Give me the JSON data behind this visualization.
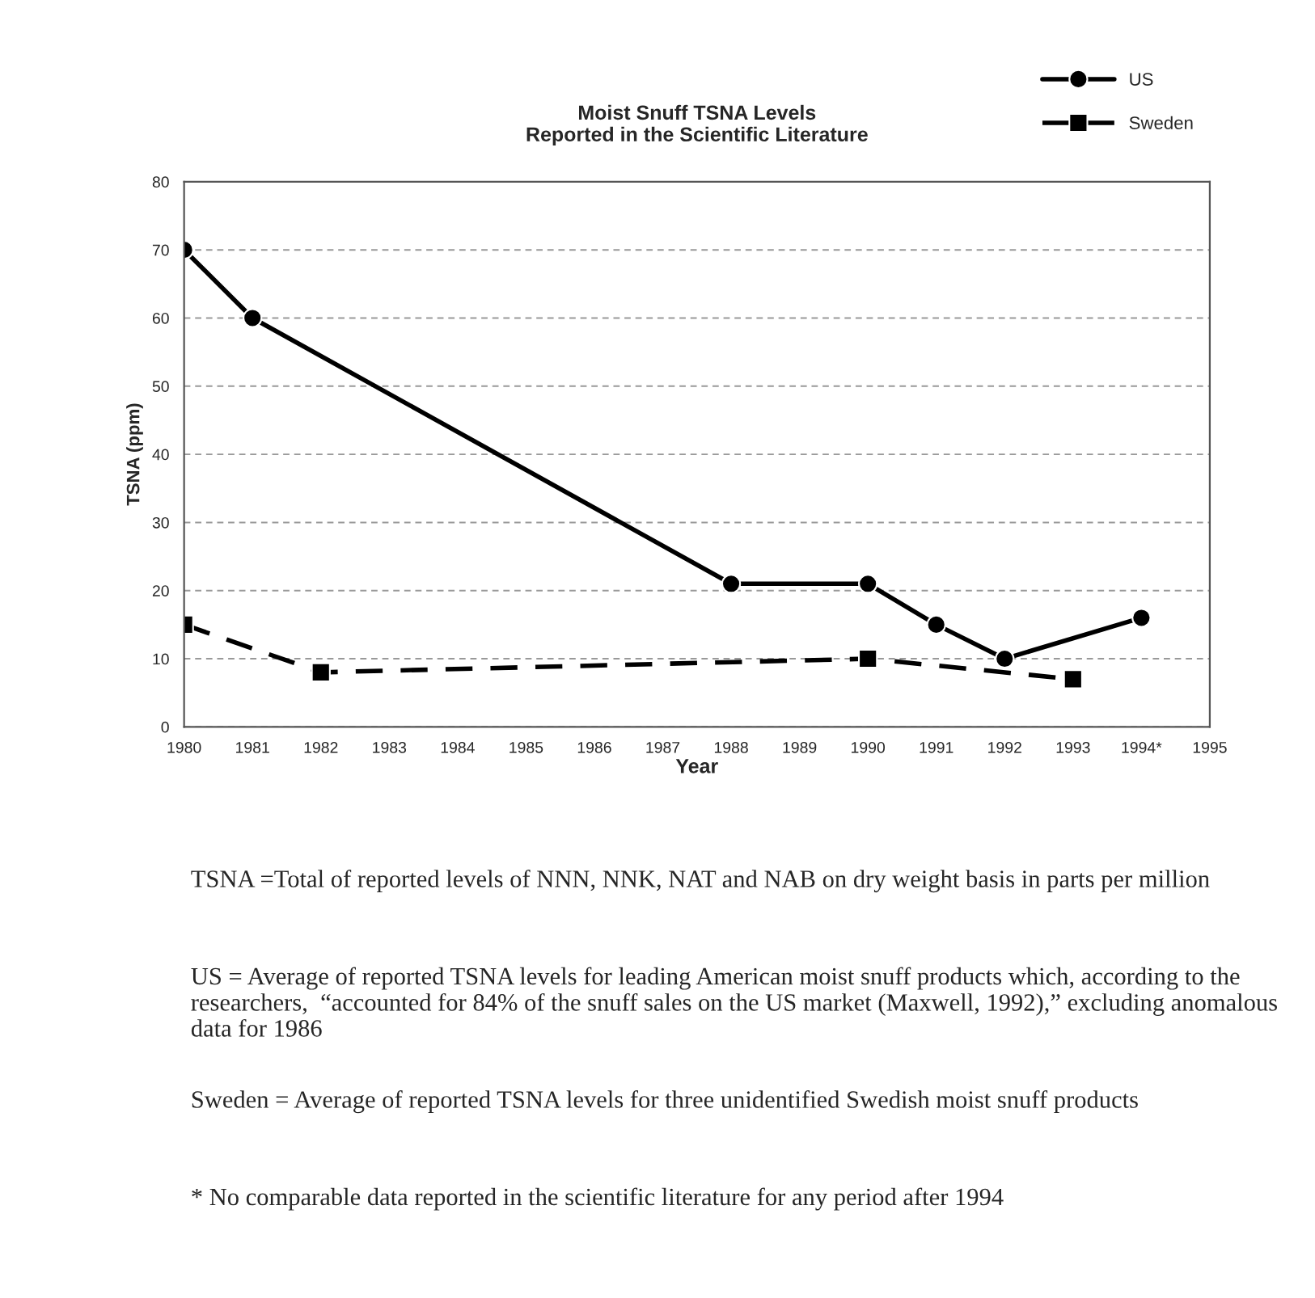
{
  "chart_data": {
    "type": "line",
    "title": "Moist Snuff TSNA Levels\nReported in the Scientific Literature",
    "xlabel": "Year",
    "ylabel": "TSNA (ppm)",
    "series": [
      {
        "name": "US",
        "color": "#000000",
        "marker": "circle",
        "line_style": "solid",
        "x": [
          1980,
          1981,
          1988,
          1990,
          1991,
          1992,
          1994
        ],
        "values": [
          70,
          60,
          21,
          21,
          15,
          10,
          16
        ]
      },
      {
        "name": "Sweden",
        "color": "#000000",
        "marker": "square",
        "line_style": "dashed",
        "x": [
          1980,
          1982,
          1990,
          1993
        ],
        "values": [
          15,
          8,
          10,
          7
        ]
      }
    ],
    "xlim": [
      1980,
      1995
    ],
    "xticks": [
      1980,
      1981,
      1982,
      1983,
      1984,
      1985,
      1986,
      1987,
      1988,
      1989,
      1990,
      1991,
      1992,
      1993,
      {
        "value": 1994,
        "label": "1994*"
      },
      1995
    ],
    "ylim": [
      0,
      80
    ],
    "yticks": [
      0,
      10,
      20,
      30,
      40,
      50,
      60,
      70,
      80
    ],
    "grid": "y",
    "legend": "top right",
    "annotations": [
      "TSNA =Total of reported levels of NNN, NNK, NAT and NAB on dry weight basis in parts per million",
      "US = Average of reported TSNA levels for leading American moist snuff products which, according to the researchers,  “accounted for 84% of the snuff sales on the US market (Maxwell, 1992),” excluding anomalous data for 1986",
      "Sweden = Average of reported TSNA levels for three unidentified Swedish moist snuff products",
      "* No comparable data reported in the scientific literature for any period after 1994"
    ]
  }
}
